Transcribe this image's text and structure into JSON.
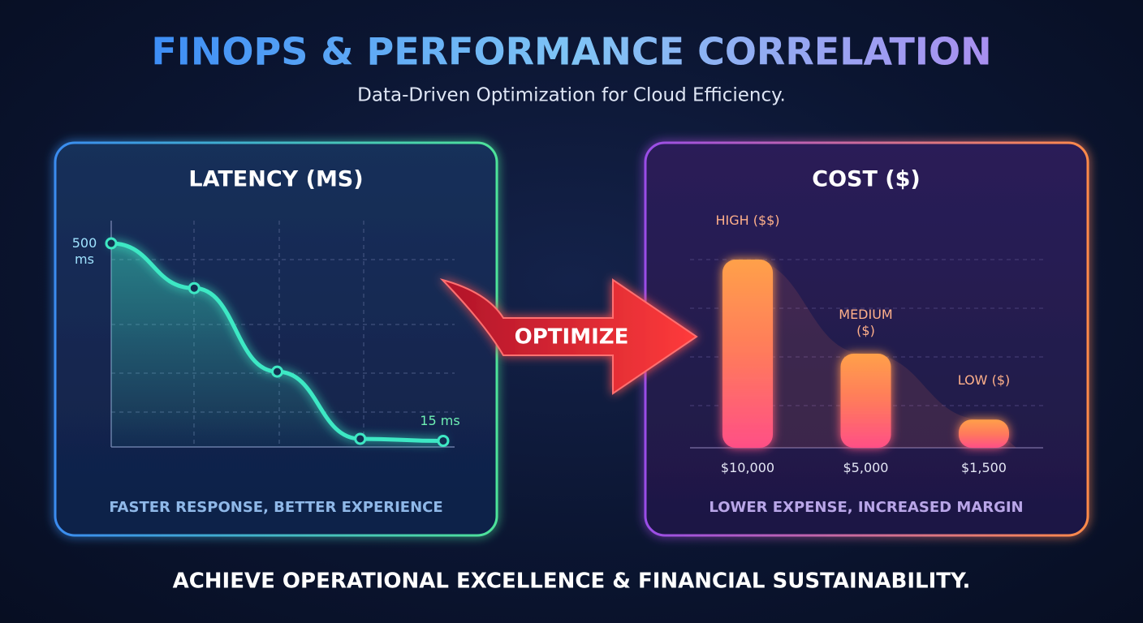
{
  "header": {
    "title": "FINOPS & PERFORMANCE CORRELATION",
    "subtitle": "Data-Driven Optimization for Cloud Efficiency."
  },
  "chart_data": [
    {
      "type": "line",
      "title": "LATENCY (MS)",
      "values": [
        500,
        390,
        185,
        20,
        15
      ],
      "value_labels": [
        "500 ms",
        null,
        null,
        null,
        "15 ms"
      ],
      "color": "#3ee8c4",
      "caption": "FASTER RESPONSE, BETTER EXPERIENCE"
    },
    {
      "type": "bar",
      "title": "COST ($)",
      "categories": [
        "HIGH ($$)",
        "MEDIUM ($)",
        "LOW ($)"
      ],
      "values": [
        10000,
        5000,
        1500
      ],
      "value_labels": [
        "$10,000",
        "$5,000",
        "$1,500"
      ],
      "color": "#ff7a5c",
      "caption": "LOWER EXPENSE, INCREASED MARGIN"
    }
  ],
  "arrow_label": "OPTIMIZE",
  "footer": "ACHIEVE OPERATIONAL EXCELLENCE & FINANCIAL SUSTAINABILITY."
}
